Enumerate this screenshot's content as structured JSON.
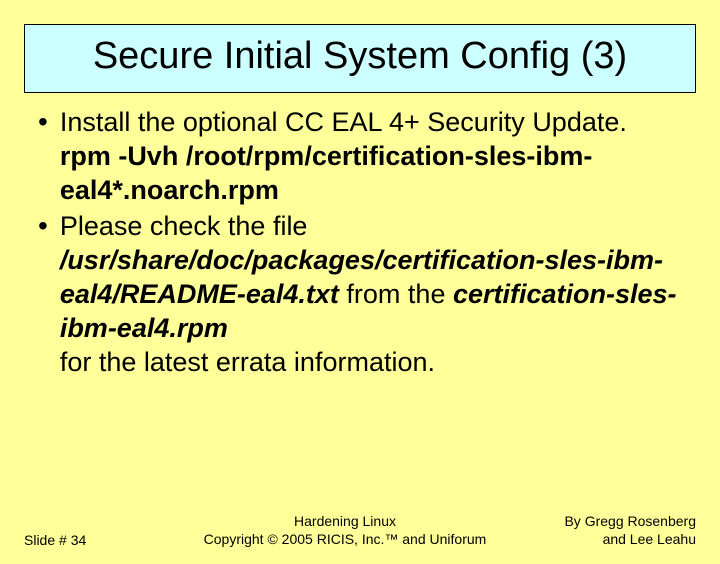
{
  "colors": {
    "background": "#ffff99",
    "title_background": "#ccffff",
    "border": "#000000",
    "text": "#000000"
  },
  "typography": {
    "title_fontsize": 38,
    "body_fontsize": 27,
    "footer_fontsize": 14,
    "font_family": "Arial"
  },
  "title": "Secure Initial System Config (3)",
  "bullets": [
    {
      "plain1": "Install the optional CC EAL 4+ Security Update.",
      "bold1": "rpm -Uvh /root/rpm/certification-sles-ibm-eal4*.noarch.rpm"
    },
    {
      "plain1": "Please check the file",
      "bolditalic1": "/usr/share/doc/packages/certification-sles-ibm-eal4/README-eal4.txt",
      "plain2": " from the ",
      "bolditalic2": "certification-sles-ibm-eal4.rpm",
      "plain3": "for the latest errata information."
    }
  ],
  "footer": {
    "slide_label": "Slide # 34",
    "center_line1": "Hardening Linux",
    "center_line2": "Copyright © 2005 RICIS, Inc.™ and Uniforum",
    "right_line1": "By Gregg Rosenberg",
    "right_line2": "and Lee Leahu"
  }
}
